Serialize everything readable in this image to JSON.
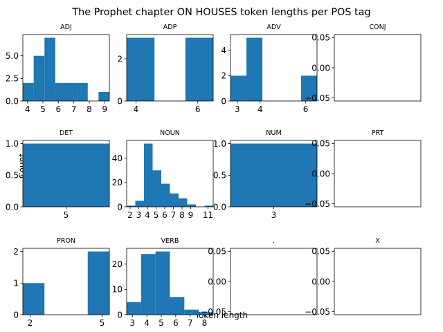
{
  "title": "The Prophet chapter ON HOUSES token lengths per POS tag",
  "xlabel": "Token length",
  "ylabel": "Count",
  "bar_color": "#1f77b4",
  "chart_data": {
    "type": "bar",
    "title": "The Prophet chapter ON HOUSES token lengths per POS tag",
    "xlabel": "Token length",
    "ylabel": "Count",
    "layout": "4x3 grid of histograms",
    "panels": [
      {
        "name": "ADJ",
        "xlim": [
          3.7,
          9.3
        ],
        "ylim": [
          0,
          7.35
        ],
        "bins": [
          [
            3.7,
            4.4,
            2
          ],
          [
            4.4,
            5.1,
            5
          ],
          [
            5.1,
            5.8,
            7
          ],
          [
            5.8,
            6.5,
            2
          ],
          [
            6.5,
            7.2,
            2
          ],
          [
            7.2,
            7.9,
            2
          ],
          [
            8.6,
            9.3,
            1
          ]
        ],
        "xticks": [
          4,
          5,
          6,
          7,
          8,
          9
        ],
        "yticks": [
          0.0,
          2.5,
          5.0
        ],
        "ytick_labels": [
          "0.0",
          "2.5",
          "5.0"
        ]
      },
      {
        "name": "ADP",
        "xlim": [
          3.7,
          6.5
        ],
        "ylim": [
          0,
          3.15
        ],
        "bins": [
          [
            3.7,
            4.6,
            3
          ],
          [
            5.6,
            6.5,
            3
          ]
        ],
        "xticks": [
          4,
          6
        ],
        "yticks": [
          0,
          2
        ],
        "ytick_labels": [
          "0",
          "2"
        ]
      },
      {
        "name": "ADV",
        "xlim": [
          2.7,
          6.5
        ],
        "ylim": [
          0,
          5.25
        ],
        "bins": [
          [
            2.7,
            3.4,
            2
          ],
          [
            3.4,
            4.1,
            5
          ],
          [
            5.8,
            6.5,
            2
          ]
        ],
        "xticks": [
          3,
          4,
          6
        ],
        "yticks": [
          0,
          2,
          4
        ],
        "ytick_labels": [
          "0",
          "2",
          "4"
        ]
      },
      {
        "name": "CONJ",
        "xlim": [
          -0.05,
          0.05
        ],
        "ylim": [
          -0.055,
          0.055
        ],
        "bins": [],
        "xticks": [],
        "yticks": [
          -0.05,
          0.0,
          0.05
        ],
        "ytick_labels": [
          "−0.05",
          "0.00",
          "0.05"
        ]
      },
      {
        "name": "DET",
        "xlim": [
          4.5,
          5.5
        ],
        "ylim": [
          0,
          1.05
        ],
        "bins": [
          [
            4.5,
            5.5,
            1
          ]
        ],
        "xticks": [
          5
        ],
        "yticks": [
          0.0,
          0.5,
          1.0
        ],
        "ytick_labels": [
          "0.0",
          "0.5",
          "1.0"
        ]
      },
      {
        "name": "NOUN",
        "xlim": [
          1.6,
          11.6
        ],
        "ylim": [
          0,
          54.6
        ],
        "bins": [
          [
            1.6,
            2.6,
            1
          ],
          [
            2.6,
            3.6,
            5
          ],
          [
            3.6,
            4.6,
            52
          ],
          [
            4.6,
            5.6,
            30
          ],
          [
            5.6,
            6.6,
            19
          ],
          [
            6.6,
            7.6,
            11
          ],
          [
            7.6,
            8.6,
            7
          ],
          [
            8.6,
            9.6,
            2
          ],
          [
            10.6,
            11.6,
            1
          ]
        ],
        "xticks": [
          2,
          3,
          4,
          5,
          6,
          7,
          8,
          9,
          11
        ],
        "yticks": [
          0,
          20,
          40
        ],
        "ytick_labels": [
          "0",
          "20",
          "40"
        ]
      },
      {
        "name": "NUM",
        "xlim": [
          2.5,
          3.5
        ],
        "ylim": [
          0,
          1.05
        ],
        "bins": [
          [
            2.5,
            3.5,
            1
          ]
        ],
        "xticks": [
          3
        ],
        "yticks": [
          0.0,
          0.5,
          1.0
        ],
        "ytick_labels": [
          "0.0",
          "0.5",
          "1.0"
        ]
      },
      {
        "name": "PRT",
        "xlim": [
          -0.05,
          0.05
        ],
        "ylim": [
          -0.055,
          0.055
        ],
        "bins": [],
        "xticks": [],
        "yticks": [
          -0.05,
          0.0,
          0.05
        ],
        "ytick_labels": [
          "−0.05",
          "0.00",
          "0.05"
        ]
      },
      {
        "name": "PRON",
        "xlim": [
          1.7,
          5.3
        ],
        "ylim": [
          0,
          2.1
        ],
        "bins": [
          [
            1.7,
            2.6,
            1
          ],
          [
            4.4,
            5.3,
            2
          ]
        ],
        "xticks": [
          2,
          5
        ],
        "yticks": [
          0,
          1,
          2
        ],
        "ytick_labels": [
          "0",
          "1",
          "2"
        ]
      },
      {
        "name": "VERB",
        "xlim": [
          2.6,
          8.6
        ],
        "ylim": [
          0,
          26.25
        ],
        "bins": [
          [
            2.6,
            3.6,
            5
          ],
          [
            3.6,
            4.6,
            24
          ],
          [
            4.6,
            5.6,
            25
          ],
          [
            5.6,
            6.6,
            7
          ],
          [
            6.6,
            7.6,
            2
          ],
          [
            7.6,
            8.6,
            1
          ]
        ],
        "xticks": [
          3,
          4,
          5,
          6,
          7,
          8
        ],
        "yticks": [
          0,
          10,
          20
        ],
        "ytick_labels": [
          "0",
          "10",
          "20"
        ]
      },
      {
        "name": ".",
        "xlim": [
          -0.05,
          0.05
        ],
        "ylim": [
          -0.055,
          0.055
        ],
        "bins": [],
        "xticks": [],
        "yticks": [
          -0.05,
          0.0,
          0.05
        ],
        "ytick_labels": [
          "−0.05",
          "0.00",
          "0.05"
        ]
      },
      {
        "name": "X",
        "xlim": [
          -0.05,
          0.05
        ],
        "ylim": [
          -0.055,
          0.055
        ],
        "bins": [],
        "xticks": [],
        "yticks": [
          -0.05,
          0.0,
          0.05
        ],
        "ytick_labels": [
          "−0.05",
          "0.00",
          "0.05"
        ]
      }
    ]
  }
}
